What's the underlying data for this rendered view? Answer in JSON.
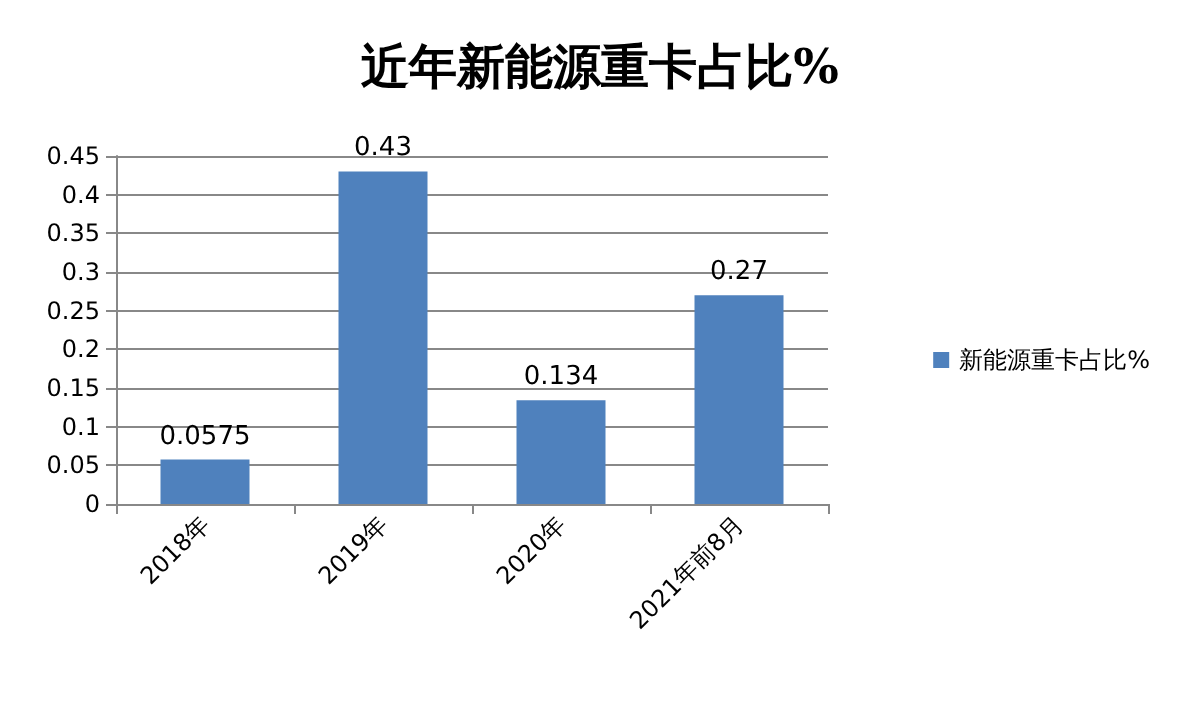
{
  "chart_data": {
    "type": "bar",
    "title": "近年新能源重卡占比%",
    "categories": [
      "2018年",
      "2019年",
      "2020年",
      "2021年前8月"
    ],
    "series": [
      {
        "name": "新能源重卡占比%",
        "color": "#4f81bd",
        "values": [
          0.0575,
          0.43,
          0.134,
          0.27
        ]
      }
    ],
    "ylim": [
      0,
      0.45
    ],
    "yticks": [
      0,
      0.05,
      0.1,
      0.15,
      0.2,
      0.25,
      0.3,
      0.35,
      0.4,
      0.45
    ],
    "grid": "y",
    "legend": "right",
    "data_labels": true
  }
}
